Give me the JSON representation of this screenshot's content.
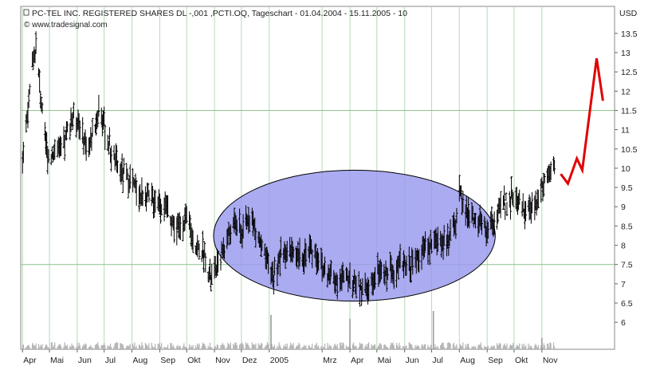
{
  "chart_data": {
    "type": "bar",
    "style": "ohlc-bars",
    "title": "PC-TEL INC. REGISTERED SHARES DL -,001 ,PCTI.OQ, Tageschart - 01.04.2004 - 15.11.2005 - 10",
    "source": "© www.tradesignal.com",
    "currency_label": "USD",
    "ylim": [
      5.3,
      14.2
    ],
    "y_ticks": [
      "6",
      "6.5",
      "7",
      "7.5",
      "8",
      "8.5",
      "9",
      "9.5",
      "10",
      "10.5",
      "11",
      "11.5",
      "12",
      "12.5",
      "13",
      "13.5"
    ],
    "reference_lines": [
      7.5,
      11.5
    ],
    "grid": "vertical-only",
    "x_ticks": [
      {
        "label": "Apr",
        "x": "2004-04-01"
      },
      {
        "label": "Mai",
        "x": "2004-05-01"
      },
      {
        "label": "Jun",
        "x": "2004-06-01"
      },
      {
        "label": "Jul",
        "x": "2004-07-01"
      },
      {
        "label": "Aug",
        "x": "2004-08-01"
      },
      {
        "label": "Sep",
        "x": "2004-09-01"
      },
      {
        "label": "Okt",
        "x": "2004-10-01"
      },
      {
        "label": "Nov",
        "x": "2004-11-01"
      },
      {
        "label": "Dez",
        "x": "2004-12-01"
      },
      {
        "label": "2005",
        "x": "2005-01-01"
      },
      {
        "label": "Mrz",
        "x": "2005-03-01"
      },
      {
        "label": "Apr",
        "x": "2005-04-01"
      },
      {
        "label": "Mai",
        "x": "2005-05-01"
      },
      {
        "label": "Jun",
        "x": "2005-06-01"
      },
      {
        "label": "Jul",
        "x": "2005-07-01"
      },
      {
        "label": "Aug",
        "x": "2005-08-01"
      },
      {
        "label": "Sep",
        "x": "2005-09-01"
      },
      {
        "label": "Okt",
        "x": "2005-10-01"
      },
      {
        "label": "Nov",
        "x": "2005-11-01"
      }
    ],
    "price_anchors": [
      [
        "2004-04-01",
        10.3
      ],
      [
        "2004-04-07",
        11.5
      ],
      [
        "2004-04-12",
        12.6
      ],
      [
        "2004-04-16",
        13.1
      ],
      [
        "2004-04-20",
        12.2
      ],
      [
        "2004-04-26",
        10.7
      ],
      [
        "2004-05-01",
        10.2
      ],
      [
        "2004-05-08",
        10.6
      ],
      [
        "2004-05-15",
        10.3
      ],
      [
        "2004-05-22",
        11.1
      ],
      [
        "2004-05-29",
        11.4
      ],
      [
        "2004-06-05",
        11.0
      ],
      [
        "2004-06-12",
        10.5
      ],
      [
        "2004-06-19",
        10.9
      ],
      [
        "2004-06-26",
        11.7
      ],
      [
        "2004-07-03",
        10.8
      ],
      [
        "2004-07-12",
        10.2
      ],
      [
        "2004-07-20",
        9.9
      ],
      [
        "2004-08-01",
        9.6
      ],
      [
        "2004-08-10",
        9.3
      ],
      [
        "2004-08-20",
        9.2
      ],
      [
        "2004-09-01",
        9.1
      ],
      [
        "2004-09-10",
        8.9
      ],
      [
        "2004-09-20",
        8.4
      ],
      [
        "2004-10-01",
        8.7
      ],
      [
        "2004-10-10",
        8.0
      ],
      [
        "2004-10-20",
        7.8
      ],
      [
        "2004-10-28",
        7.1
      ],
      [
        "2004-11-05",
        7.5
      ],
      [
        "2004-11-15",
        8.2
      ],
      [
        "2004-11-25",
        8.6
      ],
      [
        "2004-12-01",
        8.3
      ],
      [
        "2004-12-10",
        8.8
      ],
      [
        "2004-12-20",
        8.2
      ],
      [
        "2004-12-28",
        7.6
      ],
      [
        "2005-01-06",
        7.2
      ],
      [
        "2005-01-14",
        7.7
      ],
      [
        "2005-01-22",
        7.9
      ],
      [
        "2005-02-01",
        7.6
      ],
      [
        "2005-02-10",
        7.8
      ],
      [
        "2005-02-20",
        7.9
      ],
      [
        "2005-03-01",
        7.4
      ],
      [
        "2005-03-10",
        7.2
      ],
      [
        "2005-03-20",
        7.1
      ],
      [
        "2005-03-31",
        7.2
      ],
      [
        "2005-04-10",
        6.9
      ],
      [
        "2005-04-20",
        6.8
      ],
      [
        "2005-05-01",
        7.3
      ],
      [
        "2005-05-10",
        7.2
      ],
      [
        "2005-05-20",
        7.4
      ],
      [
        "2005-06-01",
        7.6
      ],
      [
        "2005-06-10",
        7.5
      ],
      [
        "2005-06-20",
        7.8
      ],
      [
        "2005-06-30",
        8.0
      ],
      [
        "2005-07-10",
        8.2
      ],
      [
        "2005-07-20",
        8.0
      ],
      [
        "2005-07-28",
        8.7
      ],
      [
        "2005-08-01",
        9.3
      ],
      [
        "2005-08-10",
        8.9
      ],
      [
        "2005-08-20",
        8.6
      ],
      [
        "2005-08-31",
        8.4
      ],
      [
        "2005-09-10",
        8.7
      ],
      [
        "2005-09-20",
        9.1
      ],
      [
        "2005-10-01",
        9.3
      ],
      [
        "2005-10-10",
        9.0
      ],
      [
        "2005-10-20",
        8.9
      ],
      [
        "2005-10-28",
        9.2
      ],
      [
        "2005-11-05",
        9.9
      ],
      [
        "2005-11-15",
        10.0
      ]
    ],
    "volume_spikes": [
      [
        "2005-01-03",
        0.9
      ],
      [
        "2005-04-01",
        0.8
      ],
      [
        "2005-07-03",
        1.0
      ],
      [
        "2005-11-01",
        0.3
      ]
    ],
    "annotations": [
      {
        "type": "ellipse",
        "fill": "#9999ee",
        "stroke": "#000000",
        "x_range": [
          "2004-10-31",
          "2005-09-10"
        ],
        "y_range": [
          6.55,
          9.95
        ]
      },
      {
        "type": "projection-line",
        "color": "#e00000",
        "points": [
          [
            "2005-11-22",
            9.85
          ],
          [
            "2005-11-30",
            9.6
          ],
          [
            "2005-12-10",
            10.25
          ],
          [
            "2005-12-16",
            9.95
          ],
          [
            "2006-01-01",
            12.85
          ],
          [
            "2006-01-08",
            11.75
          ]
        ]
      }
    ],
    "colors": {
      "bars": "#000000",
      "volume": "#b4b4b4",
      "grid": "#b5d9b5",
      "reference": "#8fc48f"
    }
  }
}
